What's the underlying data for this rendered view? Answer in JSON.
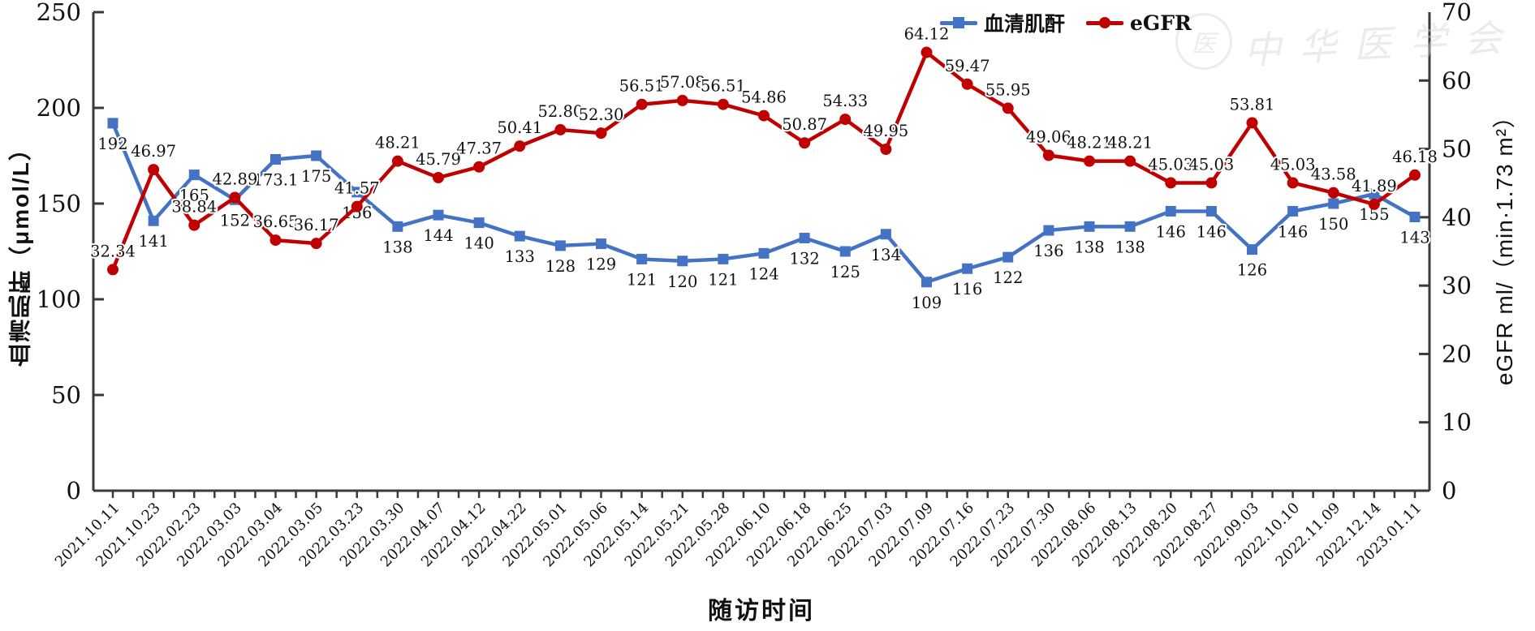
{
  "colors": {
    "creatinine": "#4472C4",
    "egfr": "#C00000",
    "axis": "#3a3a3a",
    "label_text": "#111111"
  },
  "legend": {
    "items": [
      {
        "label": "血清肌酐",
        "color": "#4472C4",
        "marker": "square"
      },
      {
        "label": "eGFR",
        "color": "#C00000",
        "marker": "circle"
      }
    ]
  },
  "watermark": {
    "text": "中华医学会",
    "seal_glyph": "医"
  },
  "chart_data": {
    "type": "line",
    "title": "",
    "xlabel": "随访时间",
    "ylabel_left": "血清肌酐（μmol/L）",
    "ylabel_right": "eGFR ml/（min·1.73 m²）",
    "grid": false,
    "legend_position": "top-right",
    "left_axis": {
      "min": 0,
      "max": 250,
      "ticks": [
        0,
        50,
        100,
        150,
        200,
        250
      ]
    },
    "right_axis": {
      "min": 0,
      "max": 70,
      "ticks": [
        0,
        10,
        20,
        30,
        40,
        50,
        60,
        70
      ]
    },
    "x_categories": [
      "2021.10.11",
      "2021.10.23",
      "2022.02.23",
      "2022.03.03",
      "2022.03.04",
      "2022.03.05",
      "2022.03.23",
      "2022.03.30",
      "2022.04.07",
      "2022.04.12",
      "2022.04.22",
      "2022.05.01",
      "2022.05.06",
      "2022.05.14",
      "2022.05.21",
      "2022.05.28",
      "2022.06.10",
      "2022.06.18",
      "2022.06.25",
      "2022.07.03",
      "2022.07.09",
      "2022.07.16",
      "2022.07.23",
      "2022.07.30",
      "2022.08.06",
      "2022.08.13",
      "2022.08.20",
      "2022.08.27",
      "2022.09.03",
      "2022.10.10",
      "2022.11.09",
      "2022.12.14",
      "2023.01.11"
    ],
    "series": [
      {
        "name": "血清肌酐",
        "axis": "left",
        "color": "#4472C4",
        "marker": "square",
        "label_position": "below",
        "values": [
          192,
          141,
          165,
          152,
          173.1,
          175,
          156,
          138,
          144,
          140,
          133,
          128,
          129,
          121,
          120,
          121,
          124,
          132,
          125,
          134,
          109,
          116,
          122,
          136,
          138,
          138,
          146,
          146,
          126,
          146,
          150,
          155,
          143
        ],
        "labels": [
          "192",
          "141",
          "165",
          "152",
          "173.1",
          "175",
          "156",
          "138",
          "144",
          "140",
          "133",
          "128",
          "129",
          "121",
          "120",
          "121",
          "124",
          "132",
          "125",
          "134",
          "109",
          "116",
          "122",
          "136",
          "138",
          "138",
          "146",
          "146",
          "126",
          "146",
          "150",
          "155",
          "143"
        ]
      },
      {
        "name": "eGFR",
        "axis": "right",
        "color": "#C00000",
        "marker": "circle",
        "label_position": "above",
        "values": [
          32.34,
          46.97,
          38.84,
          42.89,
          36.65,
          36.17,
          41.57,
          48.21,
          45.79,
          47.37,
          50.41,
          52.8,
          52.3,
          56.51,
          57.08,
          56.51,
          54.86,
          50.87,
          54.33,
          49.95,
          64.12,
          59.47,
          55.95,
          49.06,
          48.21,
          48.21,
          45.03,
          45.03,
          53.81,
          45.03,
          43.58,
          41.89,
          46.18
        ],
        "labels": [
          "32.34",
          "46.97",
          "38.84",
          "42.89",
          "36.65",
          "36.17",
          "41.57",
          "48.21",
          "45.79",
          "47.37",
          "50.41",
          "52.80",
          "52.30",
          "56.51",
          "57.08",
          "56.51",
          "54.86",
          "50.87",
          "54.33",
          "49.95",
          "64.12",
          "59.47",
          "55.95",
          "49.06",
          "48.21",
          "48.21",
          "45.03",
          "45.03",
          "53.81",
          "45.03",
          "43.58",
          "41.89",
          "46.18"
        ]
      }
    ]
  }
}
